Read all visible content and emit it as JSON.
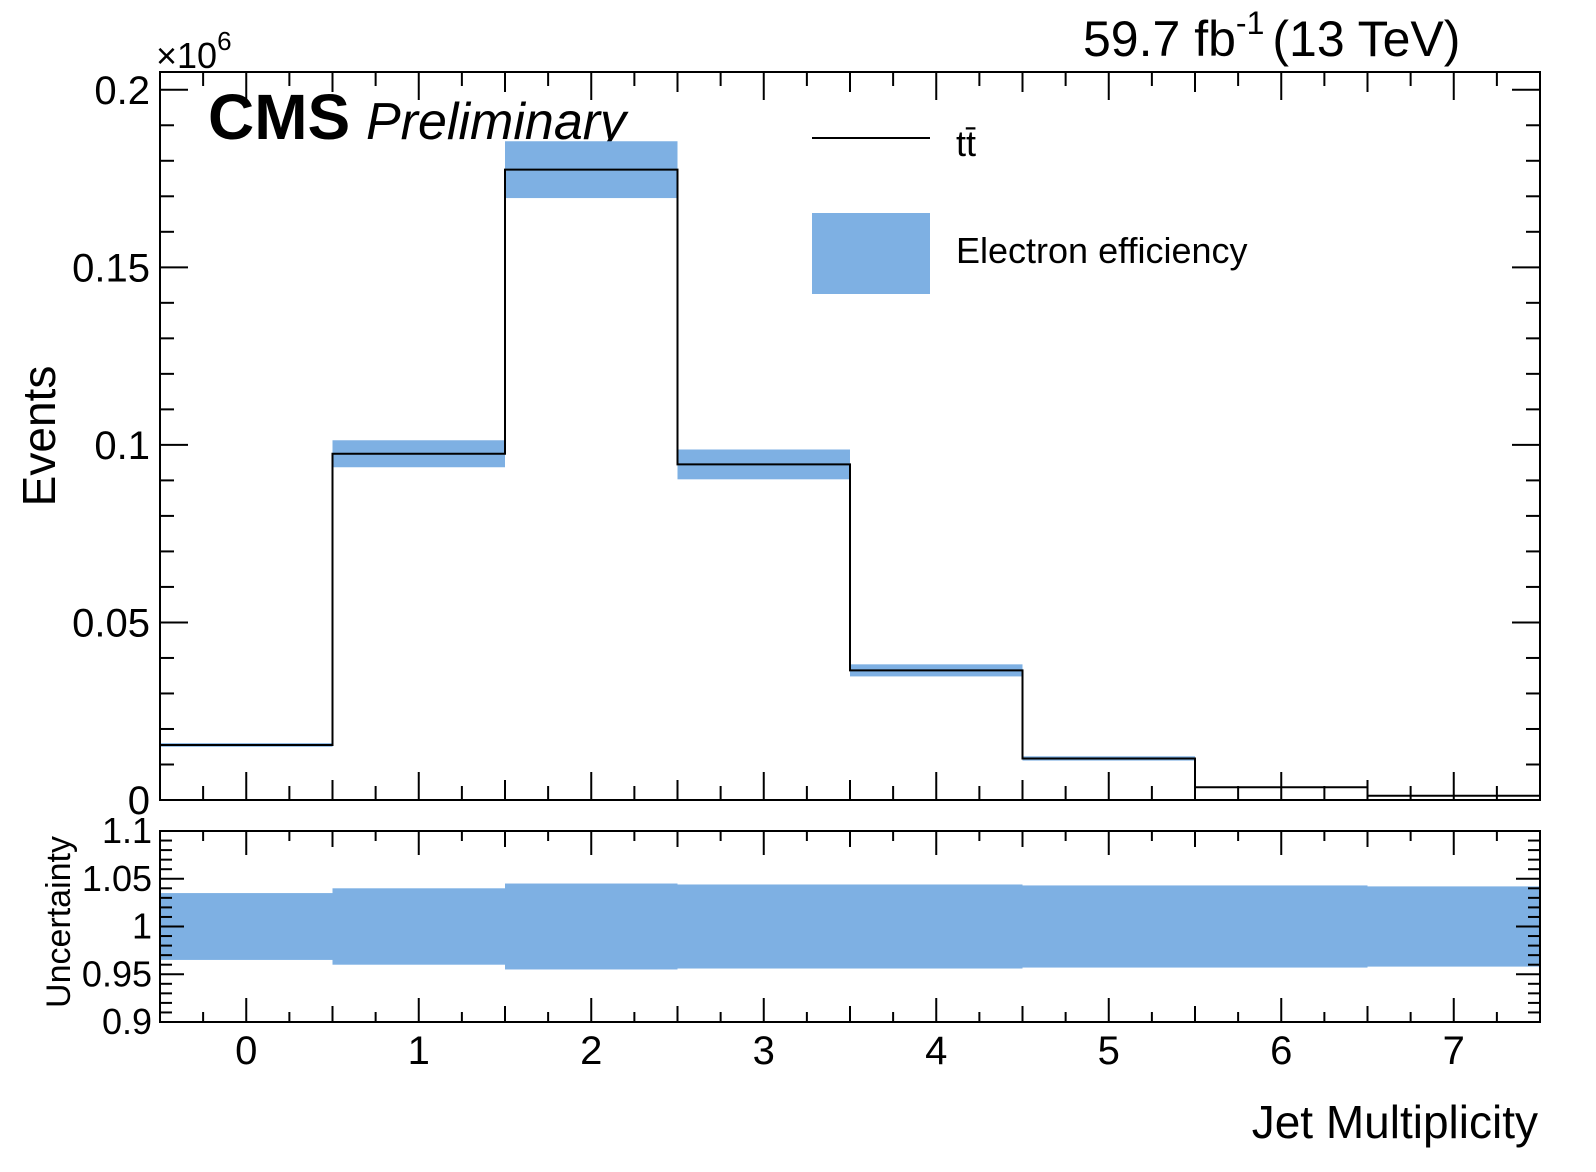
{
  "colors": {
    "band": "#7eb0e3",
    "line": "#000000",
    "frame": "#000000",
    "background": "#ffffff"
  },
  "header": {
    "lumi_value": "59.7 fb",
    "lumi_exponent": "-1",
    "lumi_energy": "(13 TeV)",
    "cms_label": "CMS",
    "preliminary_label": "Preliminary"
  },
  "chart_data": [
    {
      "type": "histogram",
      "panel": "main",
      "xlabel": "Jet Multiplicity",
      "ylabel": "Events",
      "y_multiplier_base": "×10",
      "y_multiplier_exponent": "6",
      "xlim": [
        -0.5,
        7.5
      ],
      "ylim": [
        0,
        0.205
      ],
      "y_ticks": [
        0,
        0.05,
        0.1,
        0.15,
        0.2
      ],
      "y_tick_labels": [
        "0",
        "0.05",
        "0.1",
        "0.15",
        "0.2"
      ],
      "x_ticks": [
        0,
        1,
        2,
        3,
        4,
        5,
        6,
        7
      ],
      "x_tick_labels": [
        "0",
        "1",
        "2",
        "3",
        "4",
        "5",
        "6",
        "7"
      ],
      "bin_edges": [
        -0.5,
        0.5,
        1.5,
        2.5,
        3.5,
        4.5,
        5.5,
        6.5,
        7.5
      ],
      "series": [
        {
          "name": "tt̄",
          "style": "line",
          "values": [
            0.0155,
            0.0975,
            0.1775,
            0.0945,
            0.0365,
            0.0117,
            0.0036,
            0.0012
          ]
        },
        {
          "name": "Electron efficiency",
          "style": "band",
          "lower": [
            0.015,
            0.0937,
            0.1695,
            0.0903,
            0.0348,
            0.0111,
            0.0034,
            0.0011
          ],
          "upper": [
            0.016,
            0.1013,
            0.1855,
            0.0987,
            0.0382,
            0.0123,
            0.0038,
            0.0013
          ]
        }
      ],
      "legend": {
        "placement": "top-center",
        "entries": [
          {
            "label": "tt̄",
            "style": "line"
          },
          {
            "label": "Electron efficiency",
            "style": "band"
          }
        ]
      }
    },
    {
      "type": "band",
      "panel": "ratio",
      "ylabel": "Uncertainty",
      "xlim": [
        -0.5,
        7.5
      ],
      "ylim": [
        0.9,
        1.1
      ],
      "y_ticks": [
        0.9,
        0.95,
        1.0,
        1.05,
        1.1
      ],
      "y_tick_labels": [
        "0.9",
        "0.95",
        "1",
        "1.05",
        "1.1"
      ],
      "bin_edges": [
        -0.5,
        0.5,
        1.5,
        2.5,
        3.5,
        4.5,
        5.5,
        6.5,
        7.5
      ],
      "lower": [
        0.965,
        0.96,
        0.955,
        0.956,
        0.956,
        0.957,
        0.957,
        0.958
      ],
      "upper": [
        1.035,
        1.04,
        1.045,
        1.044,
        1.044,
        1.043,
        1.043,
        1.042
      ]
    }
  ]
}
